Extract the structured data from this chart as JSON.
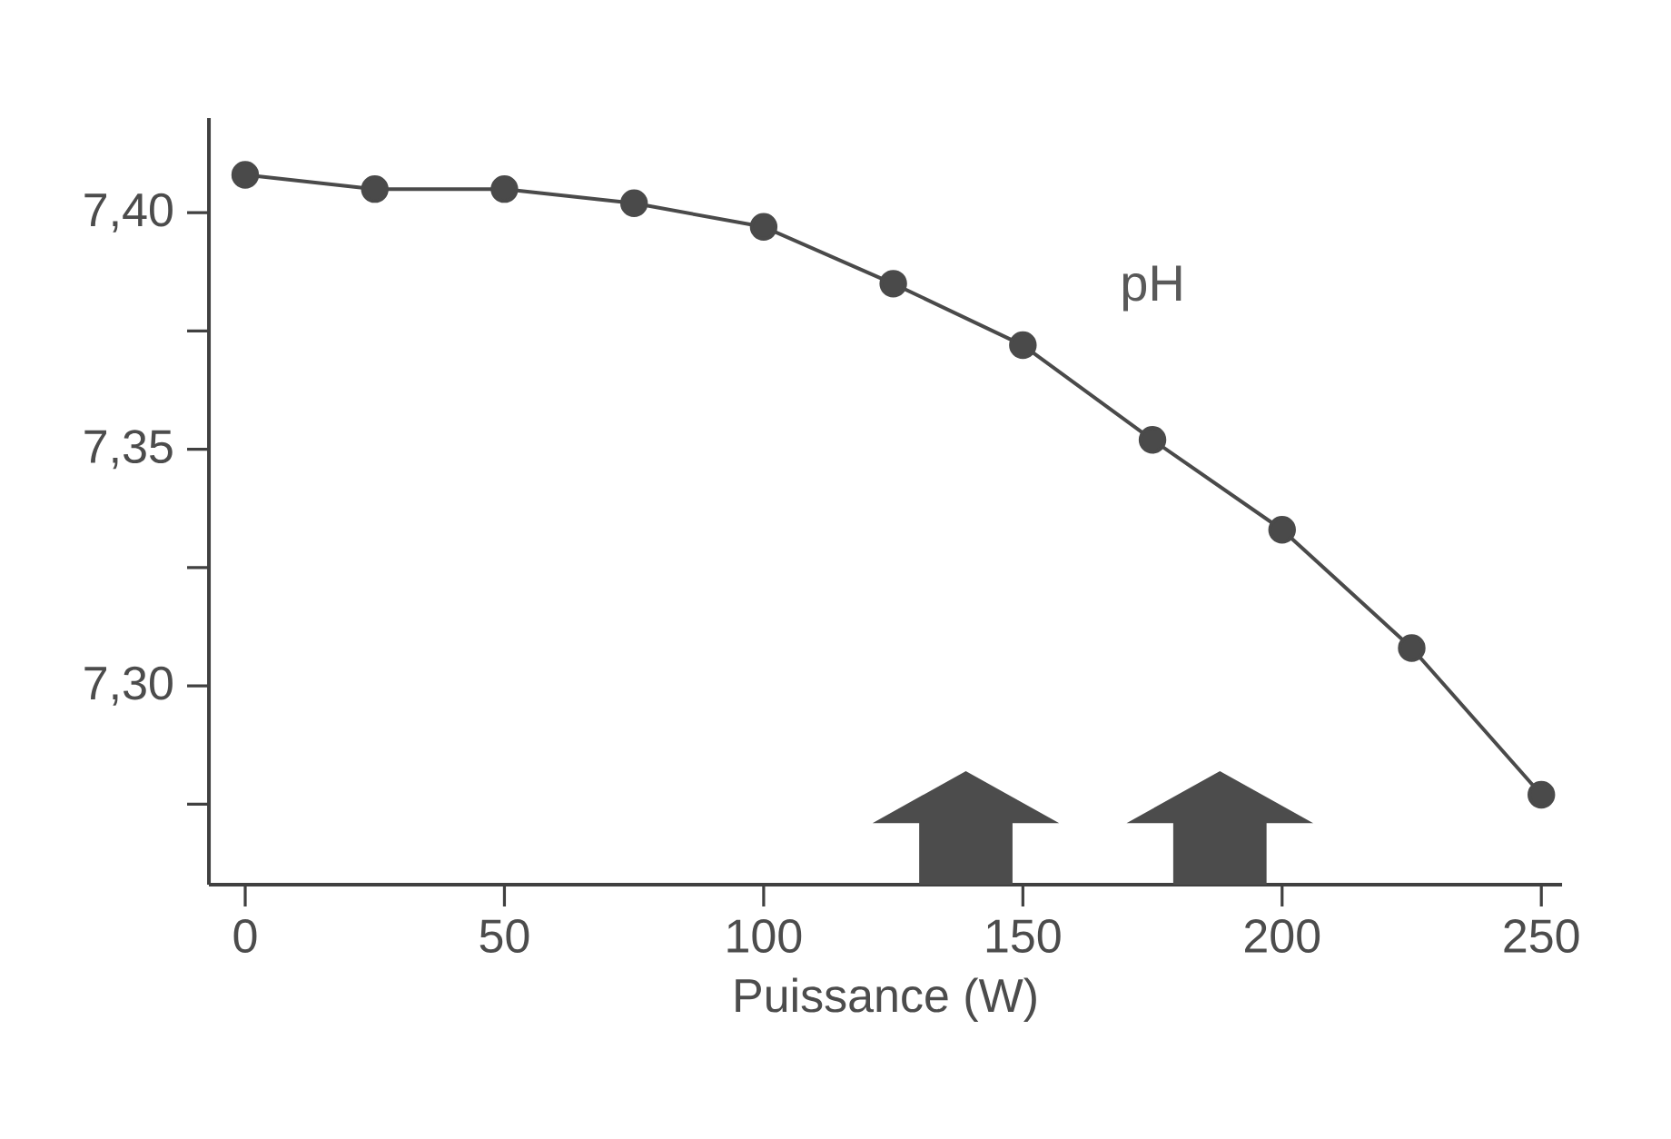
{
  "chart_data": {
    "type": "line",
    "xlabel": "Puissance (W)",
    "x": [
      0,
      25,
      50,
      75,
      100,
      125,
      150,
      175,
      200,
      225,
      250
    ],
    "series": [
      {
        "name": "pH",
        "color": "#4a4a4a",
        "values": [
          7.408,
          7.405,
          7.405,
          7.402,
          7.397,
          7.385,
          7.372,
          7.352,
          7.333,
          7.308,
          7.277
        ]
      }
    ],
    "xlim": [
      -7,
      254
    ],
    "ylim": [
      7.258,
      7.42
    ],
    "xticks": [
      0,
      50,
      100,
      150,
      200,
      250
    ],
    "yticks": [
      {
        "value": 7.4,
        "label": "7,40"
      },
      {
        "value": 7.375,
        "label": null
      },
      {
        "value": 7.35,
        "label": "7,35"
      },
      {
        "value": 7.325,
        "label": null
      },
      {
        "value": 7.3,
        "label": "7,30"
      },
      {
        "value": 7.275,
        "label": null
      }
    ],
    "marker": "circle",
    "line_style": "solid"
  }
}
